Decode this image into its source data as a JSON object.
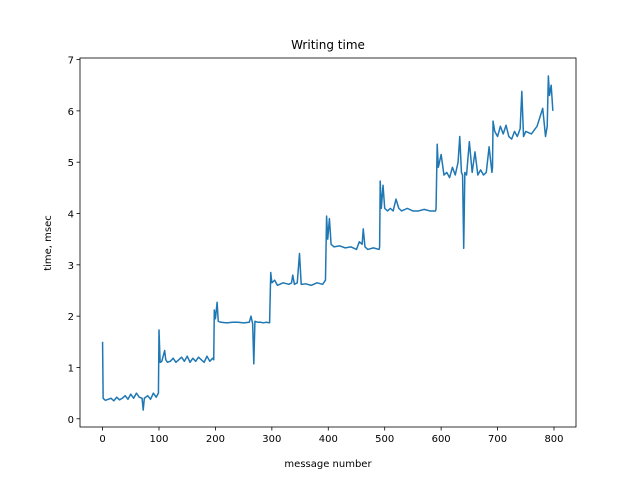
{
  "chart_data": {
    "type": "line",
    "title": "Writing time",
    "x_label": "message number",
    "y_label": "time, msec",
    "series": [
      {
        "color": "#1f77b4",
        "x": [
          0,
          1,
          5,
          10,
          15,
          20,
          25,
          30,
          35,
          40,
          45,
          50,
          55,
          60,
          65,
          70,
          72,
          74,
          80,
          85,
          90,
          95,
          98,
          99,
          100,
          102,
          105,
          110,
          112,
          115,
          120,
          125,
          130,
          135,
          140,
          145,
          150,
          155,
          160,
          165,
          170,
          175,
          180,
          185,
          190,
          195,
          197,
          198,
          200,
          203,
          205,
          210,
          220,
          230,
          240,
          250,
          260,
          263,
          265,
          266,
          268,
          270,
          275,
          280,
          285,
          290,
          296,
          298,
          300,
          305,
          310,
          320,
          330,
          335,
          337,
          340,
          345,
          349,
          352,
          360,
          370,
          380,
          390,
          395,
          397,
          399,
          402,
          405,
          410,
          420,
          430,
          440,
          450,
          455,
          460,
          462,
          465,
          470,
          480,
          490,
          491,
          492,
          494,
          497,
          500,
          505,
          510,
          515,
          520,
          525,
          530,
          540,
          550,
          560,
          570,
          580,
          590,
          591,
          593,
          595,
          600,
          605,
          610,
          615,
          620,
          625,
          630,
          633,
          636,
          638,
          640,
          642,
          645,
          650,
          655,
          660,
          665,
          670,
          675,
          680,
          685,
          690,
          691,
          692,
          695,
          700,
          705,
          710,
          715,
          720,
          725,
          730,
          735,
          740,
          743,
          746,
          750,
          760,
          770,
          780,
          785,
          788,
          790,
          792,
          795,
          798
        ],
        "values": [
          1.5,
          0.4,
          0.36,
          0.38,
          0.4,
          0.35,
          0.42,
          0.37,
          0.4,
          0.45,
          0.38,
          0.48,
          0.4,
          0.5,
          0.42,
          0.4,
          0.17,
          0.4,
          0.45,
          0.38,
          0.5,
          0.42,
          0.48,
          0.5,
          1.73,
          1.1,
          1.12,
          1.33,
          1.15,
          1.1,
          1.12,
          1.18,
          1.1,
          1.15,
          1.2,
          1.12,
          1.22,
          1.1,
          1.18,
          1.12,
          1.2,
          1.15,
          1.1,
          1.22,
          1.12,
          1.18,
          1.15,
          2.12,
          1.95,
          2.27,
          1.9,
          1.88,
          1.87,
          1.88,
          1.88,
          1.87,
          1.88,
          2.0,
          1.9,
          1.85,
          1.07,
          1.9,
          1.88,
          1.88,
          1.87,
          1.88,
          1.87,
          2.85,
          2.65,
          2.7,
          2.6,
          2.65,
          2.62,
          2.65,
          2.8,
          2.62,
          2.65,
          3.22,
          2.62,
          2.63,
          2.6,
          2.65,
          2.62,
          2.7,
          3.95,
          3.5,
          3.9,
          3.4,
          3.35,
          3.37,
          3.33,
          3.35,
          3.3,
          3.45,
          3.4,
          3.7,
          3.35,
          3.3,
          3.33,
          3.3,
          3.35,
          4.63,
          4.1,
          4.55,
          4.1,
          4.05,
          4.1,
          4.05,
          4.28,
          4.1,
          4.05,
          4.1,
          4.05,
          4.05,
          4.08,
          4.05,
          4.05,
          4.1,
          5.35,
          4.9,
          5.15,
          4.75,
          4.8,
          4.7,
          4.9,
          4.75,
          5.0,
          5.5,
          4.8,
          4.75,
          3.32,
          4.8,
          4.75,
          5.4,
          4.8,
          5.2,
          4.75,
          4.85,
          4.75,
          4.8,
          5.3,
          4.8,
          4.9,
          5.8,
          5.6,
          5.5,
          5.7,
          5.55,
          5.72,
          5.5,
          5.45,
          5.6,
          5.5,
          5.65,
          6.38,
          5.5,
          5.6,
          5.55,
          5.7,
          6.05,
          5.5,
          5.7,
          6.68,
          6.3,
          6.5,
          6.0
        ]
      }
    ],
    "xlim": [
      -40,
      839
    ],
    "ylim": [
      -0.16,
      7.03
    ],
    "xticks": [
      0,
      100,
      200,
      300,
      400,
      500,
      600,
      700,
      800
    ],
    "yticks": [
      0,
      1,
      2,
      3,
      4,
      5,
      6,
      7
    ]
  }
}
